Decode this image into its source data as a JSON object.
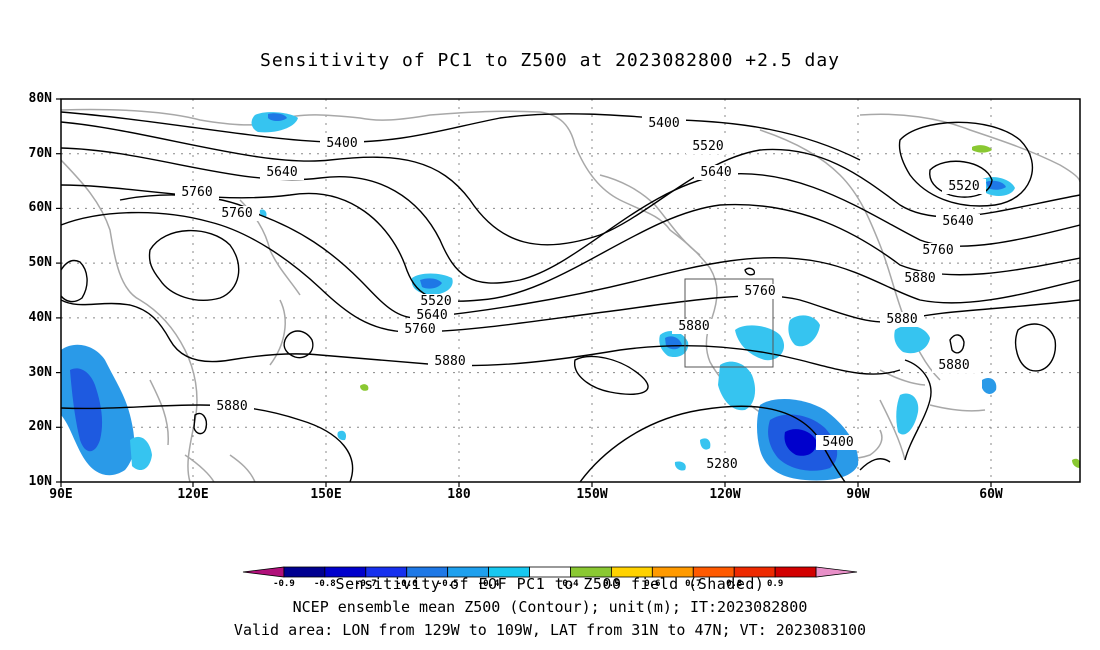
{
  "title": "Sensitivity of PC1 to Z500 at 2023082800 +2.5 day",
  "map": {
    "lat_ticks": [
      "80N",
      "70N",
      "60N",
      "50N",
      "40N",
      "30N",
      "20N",
      "10N"
    ],
    "lon_ticks": [
      "90E",
      "120E",
      "150E",
      "180",
      "150W",
      "120W",
      "90W",
      "60W"
    ],
    "contour_labels": [
      "5400",
      "5400",
      "5520",
      "5640",
      "5640",
      "5760",
      "5760",
      "5520",
      "5640",
      "5760",
      "5880",
      "5880",
      "5760",
      "5880",
      "5280",
      "5400",
      "5520",
      "5640",
      "5760",
      "5880",
      "5880",
      "5880"
    ],
    "valid_box": {
      "lon_from": "129W",
      "lon_to": "109W",
      "lat_from": "31N",
      "lat_to": "47N"
    }
  },
  "colorbar": {
    "levels": [
      "-0.9",
      "-0.8",
      "-0.7",
      "-0.6",
      "-0.5",
      "-0.4",
      "0.4",
      "0.5",
      "0.6",
      "0.7",
      "0.8",
      "0.9"
    ],
    "colors": [
      "#b0107a",
      "#000090",
      "#0000cc",
      "#1630ee",
      "#1e78e6",
      "#1ea0ee",
      "#18c8f0",
      "#ffffff",
      "#8ac832",
      "#ffd200",
      "#ff9a00",
      "#ff5a00",
      "#ee2a00",
      "#d20000",
      "#e890c8"
    ],
    "overlap_text": "Sensitivity of EOF PC1 to Z500 field (Shaded)"
  },
  "footer": {
    "line1": "Sensitivity of EOF PC1 to Z500 field (Shaded)",
    "line2": "NCEP ensemble mean Z500 (Contour); unit(m); IT:2023082800",
    "line3": "Valid area: LON from 129W to 109W, LAT from 31N to 47N; VT: 2023083100"
  }
}
